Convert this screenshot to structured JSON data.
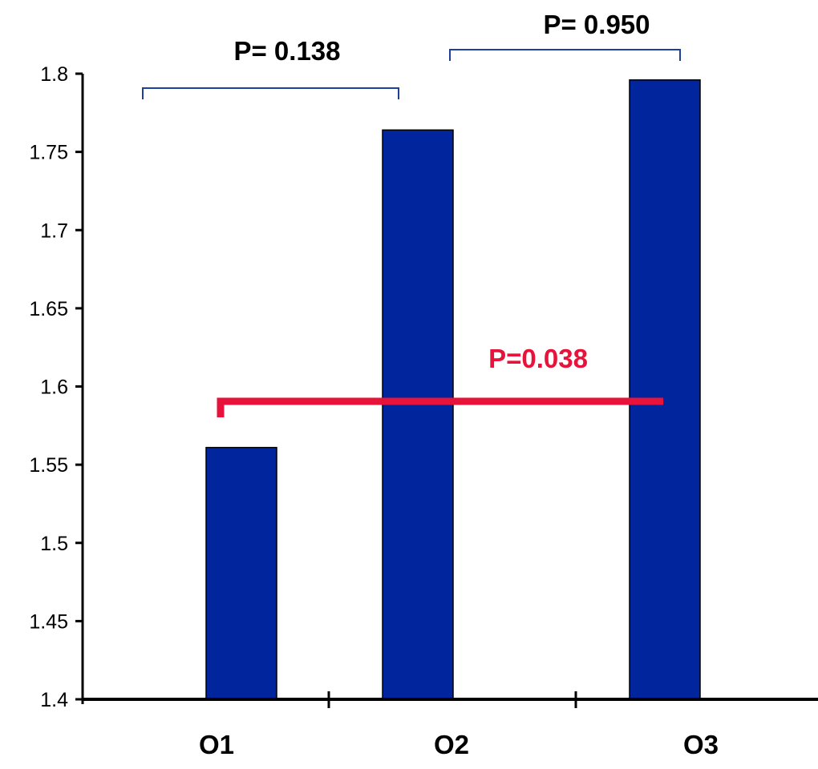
{
  "chart_data": {
    "type": "bar",
    "title": "",
    "xlabel": "",
    "ylabel": "",
    "categories": [
      "O1",
      "O2",
      "O3"
    ],
    "values": [
      1.561,
      1.764,
      1.796
    ],
    "ylim": [
      1.4,
      1.8
    ],
    "yticks": [
      "1.4",
      "1.45",
      "1.5",
      "1.55",
      "1.6",
      "1.65",
      "1.7",
      "1.75",
      "1.8"
    ],
    "grid": false,
    "legend": "none",
    "colors": {
      "bar": "#00259C",
      "bracket_blue": "#1F3F9F",
      "bracket_red": "#E8133A"
    },
    "annotations": [
      {
        "label": "P= 0.138",
        "from": "O1",
        "to": "O2",
        "color": "blue"
      },
      {
        "label": "P= 0.950",
        "from": "O2",
        "to": "O3",
        "color": "blue"
      },
      {
        "label": "P=0.038",
        "from": "O1",
        "to": "O3",
        "color": "red"
      }
    ]
  }
}
